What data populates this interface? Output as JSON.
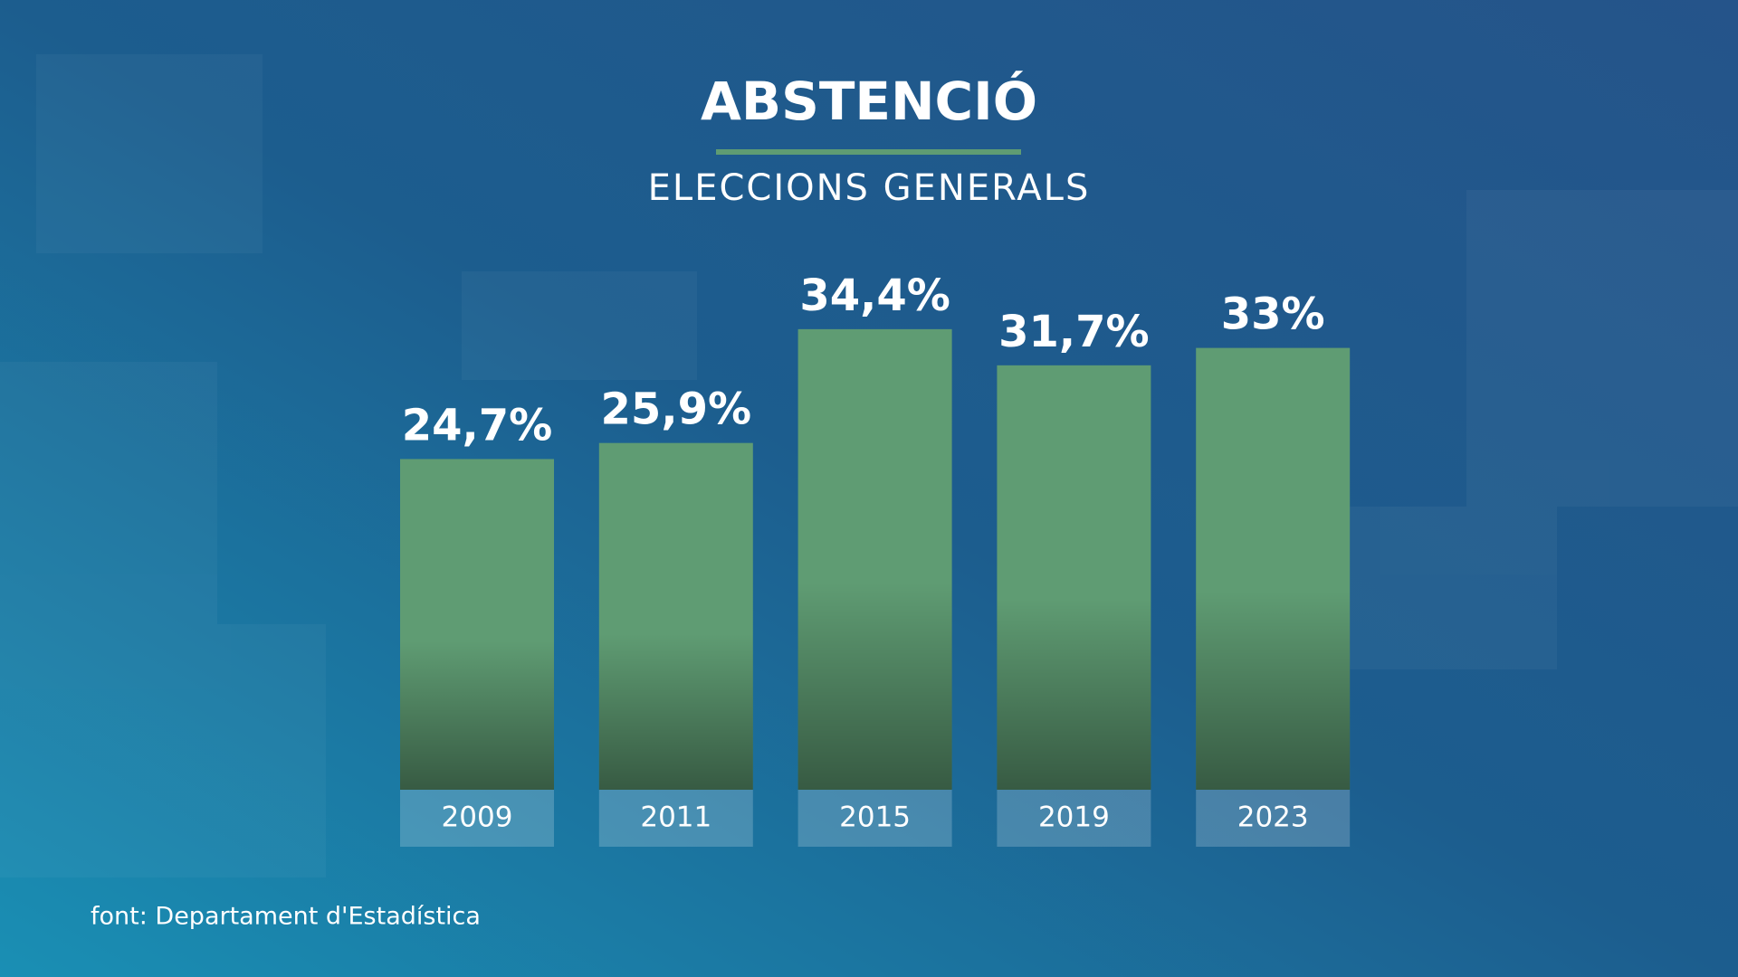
{
  "chart_data": {
    "type": "bar",
    "title": "ABSTENCIÓ",
    "subtitle": "ELECCIONS GENERALS",
    "categories": [
      "2009",
      "2011",
      "2015",
      "2019",
      "2023"
    ],
    "values": [
      24.7,
      25.9,
      34.4,
      31.7,
      33
    ],
    "value_labels": [
      "24,7%",
      "25,9%",
      "34,4%",
      "31,7%",
      "33%"
    ],
    "color": "#5f9c73",
    "source": "font: Departament d'Estadística"
  }
}
